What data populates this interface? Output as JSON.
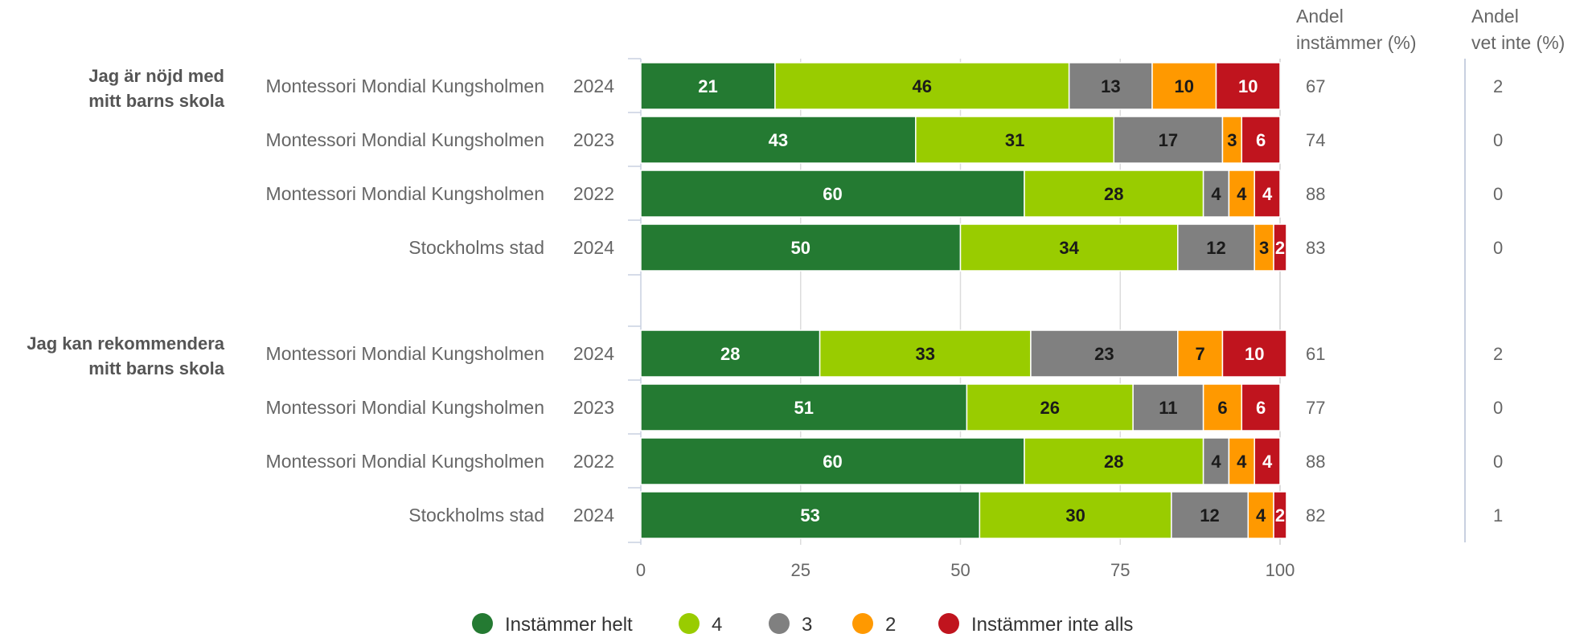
{
  "chart_data": {
    "type": "bar",
    "orientation": "horizontal",
    "stacked": true,
    "xlim": [
      0,
      100
    ],
    "xticks": [
      0,
      25,
      50,
      75,
      100
    ],
    "grid": true,
    "legend_position": "bottom",
    "legend": [
      {
        "name": "Instämmer helt",
        "color": "#247a32"
      },
      {
        "name": "4",
        "color": "#99cc00"
      },
      {
        "name": "3",
        "color": "#808080"
      },
      {
        "name": "2",
        "color": "#ff9900"
      },
      {
        "name": "Instämmer inte alls",
        "color": "#c0141e"
      }
    ],
    "columns": {
      "agree": {
        "head_line1": "Andel",
        "head_line2": "instämmer (%)"
      },
      "dontknow": {
        "head_line1": "Andel",
        "head_line2": "vet inte (%)"
      }
    },
    "groups": [
      {
        "label_line1": "Jag är nöjd med",
        "label_line2": "mitt barns skola",
        "rows": [
          {
            "name": "Montessori Mondial Kungsholmen",
            "year": "2024",
            "values": [
              21,
              46,
              13,
              10,
              10
            ],
            "agree": "67",
            "dontknow": "2"
          },
          {
            "name": "Montessori Mondial Kungsholmen",
            "year": "2023",
            "values": [
              43,
              31,
              17,
              3,
              6
            ],
            "agree": "74",
            "dontknow": "0"
          },
          {
            "name": "Montessori Mondial Kungsholmen",
            "year": "2022",
            "values": [
              60,
              28,
              4,
              4,
              4
            ],
            "agree": "88",
            "dontknow": "0"
          },
          {
            "name": "Stockholms stad",
            "year": "2024",
            "values": [
              50,
              34,
              12,
              3,
              2
            ],
            "agree": "83",
            "dontknow": "0"
          }
        ]
      },
      {
        "label_line1": "Jag kan rekommendera",
        "label_line2": "mitt barns skola",
        "rows": [
          {
            "name": "Montessori Mondial Kungsholmen",
            "year": "2024",
            "values": [
              28,
              33,
              23,
              7,
              10
            ],
            "agree": "61",
            "dontknow": "2"
          },
          {
            "name": "Montessori Mondial Kungsholmen",
            "year": "2023",
            "values": [
              51,
              26,
              11,
              6,
              6
            ],
            "agree": "77",
            "dontknow": "0"
          },
          {
            "name": "Montessori Mondial Kungsholmen",
            "year": "2022",
            "values": [
              60,
              28,
              4,
              4,
              4
            ],
            "agree": "88",
            "dontknow": "0"
          },
          {
            "name": "Stockholms stad",
            "year": "2024",
            "values": [
              53,
              30,
              12,
              4,
              2
            ],
            "agree": "82",
            "dontknow": "1"
          }
        ]
      }
    ]
  }
}
